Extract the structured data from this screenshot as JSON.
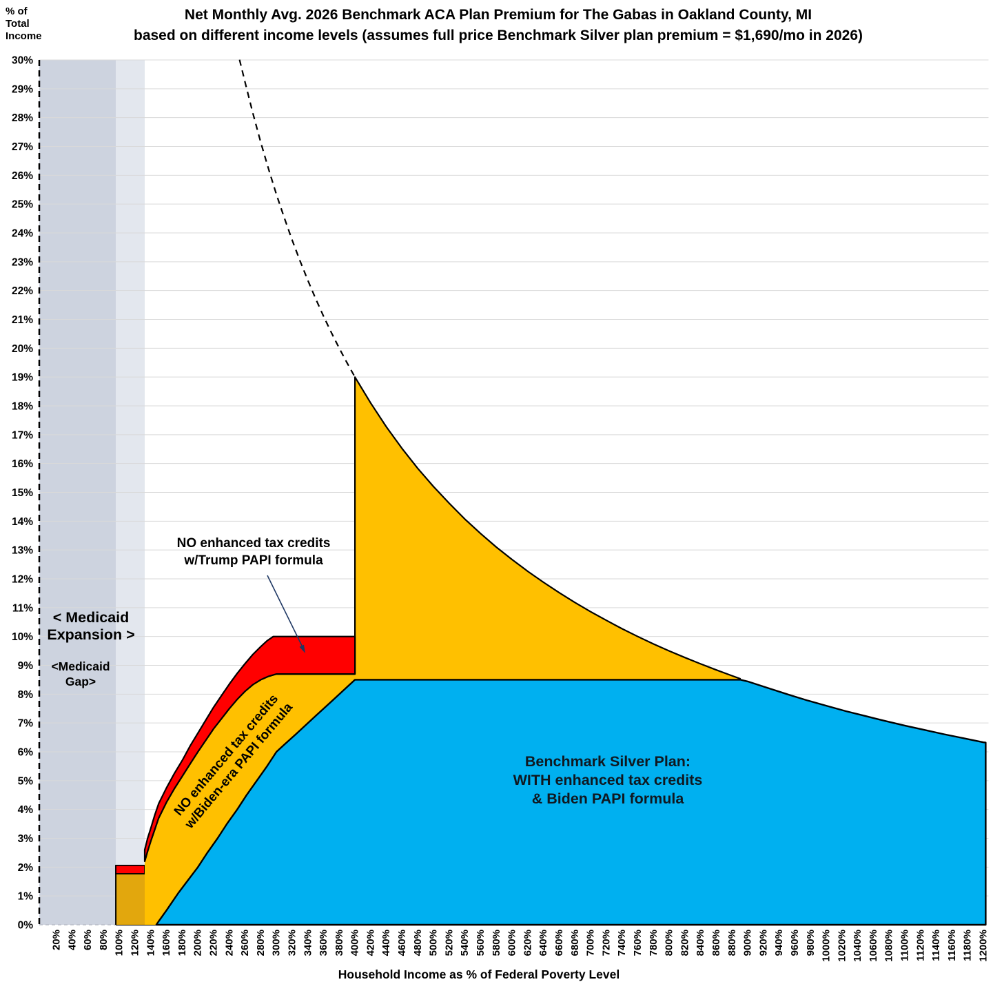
{
  "chart": {
    "title_line1": "Net Monthly Avg. 2026 Benchmark ACA Plan Premium for The Gabas in Oakland County, MI",
    "title_line2": "based on different income levels (assumes full price Benchmark Silver plan premium = $1,690/mo in 2026)",
    "y_axis_header": "% of\nTotal\nIncome",
    "x_axis_title": "Household Income as % of Federal Poverty Level",
    "annotations": {
      "medicaid_expansion": "< Medicaid\nExpansion >",
      "medicaid_gap": "<Medicaid\nGap>",
      "trump_label": "NO enhanced tax credits\nw/Trump PAPI formula",
      "biden_label": "NO enhanced tax credits\nw/Biden-era PAPI formula",
      "blue_label": "Benchmark Silver Plan:\nWITH enhanced tax credits\n& Biden PAPI formula"
    },
    "colors": {
      "blue": "#00B0F0",
      "orange": "#FFC000",
      "red": "#FF0000",
      "gold_dark": "#E2A70D",
      "band_dark": "#CDD3DF",
      "band_light": "#E3E7EE",
      "grid": "#D9D9D9",
      "outline": "#000000",
      "arrow": "#1F3864",
      "baseline_dash": "#b9bdc7"
    }
  },
  "chart_data": {
    "type": "area",
    "title": "Net Monthly Avg. 2026 Benchmark ACA Plan Premium for The Gabas in Oakland County, MI based on different income levels (assumes full price Benchmark Silver plan premium = $1,690/mo in 2026)",
    "xlabel": "Household Income as % of Federal Poverty Level",
    "ylabel": "% of Total Income",
    "x_range_fpl_pct": [
      0,
      1207
    ],
    "y_range_pct_income": [
      0,
      30
    ],
    "grid": true,
    "y_ticks": [
      "30%",
      "29%",
      "28%",
      "27%",
      "26%",
      "25%",
      "24%",
      "23%",
      "22%",
      "21%",
      "20%",
      "19%",
      "18%",
      "17%",
      "16%",
      "15%",
      "14%",
      "13%",
      "12%",
      "11%",
      "10%",
      "9%",
      "8%",
      "7%",
      "6%",
      "5%",
      "4%",
      "3%",
      "2%",
      "1%",
      "0%"
    ],
    "x_ticks": [
      "20%",
      "40%",
      "60%",
      "80%",
      "100%",
      "120%",
      "140%",
      "160%",
      "180%",
      "200%",
      "220%",
      "240%",
      "260%",
      "280%",
      "300%",
      "320%",
      "340%",
      "360%",
      "380%",
      "400%",
      "420%",
      "440%",
      "460%",
      "480%",
      "500%",
      "520%",
      "540%",
      "560%",
      "580%",
      "600%",
      "620%",
      "640%",
      "660%",
      "680%",
      "700%",
      "720%",
      "740%",
      "760%",
      "780%",
      "800%",
      "820%",
      "840%",
      "860%",
      "880%",
      "900%",
      "920%",
      "940%",
      "960%",
      "980%",
      "1000%",
      "1020%",
      "1040%",
      "1060%",
      "1080%",
      "1100%",
      "1120%",
      "1140%",
      "1160%",
      "1180%",
      "1200%"
    ],
    "regions": {
      "medicaid_expansion_band": {
        "fpl": [
          0,
          95.5
        ]
      },
      "medicaid_gap_band": {
        "fpl": [
          95.5,
          132.3
        ]
      },
      "low_income_red_block": {
        "fpl": [
          95.5,
          132.3
        ],
        "pct": [
          1.77,
          2.06
        ]
      },
      "low_income_gold_block": {
        "fpl": [
          95.5,
          132.3
        ],
        "pct": [
          0,
          1.77
        ]
      }
    },
    "series": {
      "full_price_dashed_below_400": [
        [
          253,
          30.01
        ],
        [
          260,
          29.23
        ],
        [
          270,
          28.15
        ],
        [
          280,
          27.14
        ],
        [
          290,
          26.21
        ],
        [
          300,
          25.33
        ],
        [
          310,
          24.52
        ],
        [
          320,
          23.75
        ],
        [
          330,
          23.03
        ],
        [
          340,
          22.35
        ],
        [
          350,
          21.71
        ],
        [
          360,
          21.11
        ],
        [
          370,
          20.54
        ],
        [
          380,
          20.0
        ],
        [
          390,
          19.49
        ],
        [
          400,
          19.0
        ]
      ],
      "full_price_above_400": [
        [
          400,
          19.0
        ],
        [
          420,
          18.1
        ],
        [
          440,
          17.27
        ],
        [
          460,
          16.52
        ],
        [
          480,
          15.83
        ],
        [
          500,
          15.2
        ],
        [
          520,
          14.62
        ],
        [
          540,
          14.07
        ],
        [
          560,
          13.57
        ],
        [
          580,
          13.1
        ],
        [
          600,
          12.67
        ],
        [
          620,
          12.26
        ],
        [
          640,
          11.88
        ],
        [
          660,
          11.52
        ],
        [
          680,
          11.18
        ],
        [
          700,
          10.86
        ],
        [
          720,
          10.56
        ],
        [
          740,
          10.27
        ],
        [
          760,
          10.0
        ],
        [
          780,
          9.74
        ],
        [
          800,
          9.5
        ],
        [
          820,
          9.27
        ],
        [
          840,
          9.05
        ],
        [
          860,
          8.84
        ],
        [
          880,
          8.64
        ],
        [
          891,
          8.53
        ]
      ],
      "trump_no_enhanced": [
        [
          132.3,
          2.6
        ],
        [
          136,
          3.0
        ],
        [
          140,
          3.35
        ],
        [
          145,
          3.8
        ],
        [
          150,
          4.2
        ],
        [
          160,
          4.75
        ],
        [
          170,
          5.25
        ],
        [
          180,
          5.7
        ],
        [
          190,
          6.2
        ],
        [
          200,
          6.65
        ],
        [
          210,
          7.1
        ],
        [
          220,
          7.55
        ],
        [
          230,
          7.95
        ],
        [
          240,
          8.35
        ],
        [
          250,
          8.72
        ],
        [
          260,
          9.06
        ],
        [
          270,
          9.38
        ],
        [
          280,
          9.65
        ],
        [
          288,
          9.85
        ],
        [
          296,
          10.0
        ],
        [
          400,
          10.0
        ]
      ],
      "biden_no_enhanced": [
        [
          132.3,
          2.2
        ],
        [
          136,
          2.55
        ],
        [
          140,
          2.9
        ],
        [
          145,
          3.3
        ],
        [
          150,
          3.7
        ],
        [
          160,
          4.25
        ],
        [
          170,
          4.72
        ],
        [
          180,
          5.15
        ],
        [
          190,
          5.58
        ],
        [
          200,
          6.0
        ],
        [
          210,
          6.4
        ],
        [
          220,
          6.8
        ],
        [
          230,
          7.15
        ],
        [
          240,
          7.5
        ],
        [
          250,
          7.82
        ],
        [
          260,
          8.1
        ],
        [
          270,
          8.33
        ],
        [
          280,
          8.5
        ],
        [
          290,
          8.62
        ],
        [
          300,
          8.7
        ],
        [
          400,
          8.7
        ]
      ],
      "with_enhanced": [
        [
          147,
          0
        ],
        [
          150,
          0.12
        ],
        [
          160,
          0.5
        ],
        [
          175,
          1.1
        ],
        [
          200,
          2.0
        ],
        [
          212,
          2.5
        ],
        [
          225,
          3.0
        ],
        [
          237,
          3.5
        ],
        [
          250,
          4.0
        ],
        [
          262,
          4.5
        ],
        [
          275,
          5.0
        ],
        [
          288,
          5.5
        ],
        [
          300,
          6.0
        ],
        [
          310,
          6.25
        ],
        [
          325,
          6.62
        ],
        [
          350,
          7.25
        ],
        [
          375,
          7.87
        ],
        [
          400,
          8.5
        ],
        [
          891,
          8.5
        ],
        [
          900,
          8.44
        ],
        [
          925,
          8.22
        ],
        [
          950,
          8.0
        ],
        [
          975,
          7.79
        ],
        [
          1000,
          7.6
        ],
        [
          1025,
          7.41
        ],
        [
          1050,
          7.24
        ],
        [
          1075,
          7.07
        ],
        [
          1100,
          6.91
        ],
        [
          1125,
          6.76
        ],
        [
          1150,
          6.61
        ],
        [
          1175,
          6.47
        ],
        [
          1200,
          6.33
        ],
        [
          1203,
          6.32
        ]
      ]
    },
    "annotation_arrow": {
      "from": [
        388,
        835
      ],
      "to": [
        440,
        941
      ],
      "tip": [
        443,
        948
      ]
    }
  },
  "layout_note": ""
}
